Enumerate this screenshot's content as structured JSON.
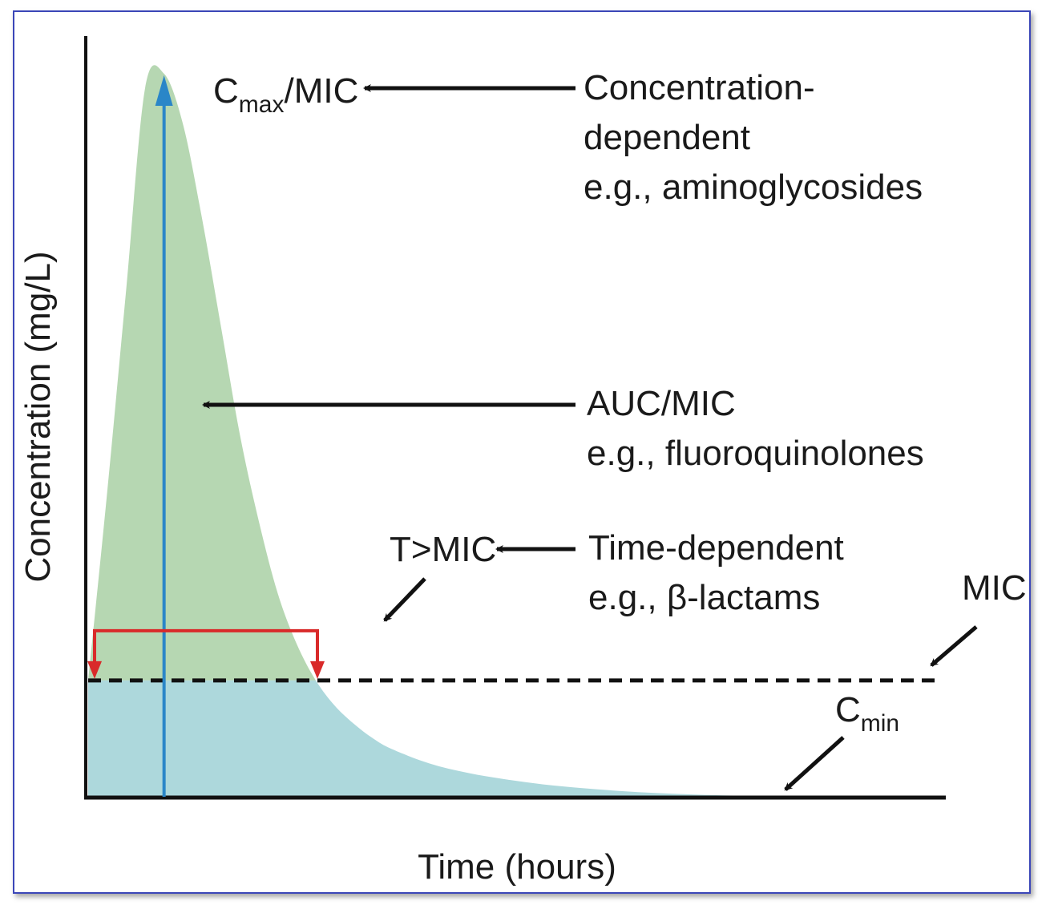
{
  "chart_data": {
    "type": "area",
    "title": "",
    "xlabel": "Time (hours)",
    "ylabel": "Concentration (mg/L)",
    "x_ticks": [],
    "y_ticks": [],
    "grid": false,
    "series": [
      {
        "name": "",
        "x": [
          0,
          0.5,
          1,
          1.5,
          2,
          2.5,
          3,
          3.5,
          4,
          4.5,
          5,
          5.5,
          6,
          6.5,
          7,
          7.5,
          8,
          9,
          10,
          11,
          12,
          13,
          14,
          15,
          16,
          17,
          18
        ],
        "y": [
          16,
          42,
          70,
          98,
          100,
          93,
          80,
          65,
          50,
          38,
          28,
          21,
          16,
          12.5,
          10,
          8,
          6.5,
          4.5,
          3.2,
          2.3,
          1.6,
          1.1,
          0.7,
          0.4,
          0.2,
          0.05,
          0
        ]
      }
    ],
    "mic_value": 16,
    "colors": {
      "above_mic_fill": "#b6d7b2",
      "below_mic_fill": "#add8dc",
      "cmax_arrow": "#2a86c8",
      "t_mic_bracket": "#d92a2a",
      "annotation_arrow": "#111111",
      "frame_border": "#3b46b8"
    },
    "annotations": {
      "cmax": {
        "main": "C",
        "sub": "max",
        "rest": "/MIC"
      },
      "concentration_dependent": [
        "Concentration-",
        "dependent",
        "e.g., aminoglycosides"
      ],
      "auc": [
        "AUC/MIC",
        "e.g., fluoroquinolones"
      ],
      "t_mic": "T>MIC",
      "time_dependent": [
        "Time-dependent",
        "e.g., β-lactams"
      ],
      "mic": "MIC",
      "cmin": {
        "main": "C",
        "sub": "min"
      }
    }
  }
}
